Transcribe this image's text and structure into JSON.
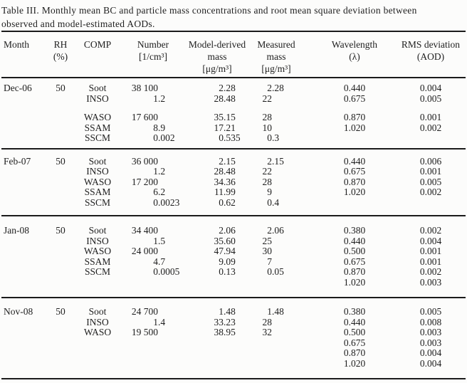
{
  "caption": {
    "lines": [
      "Table III. Monthly mean BC and particle mass concentrations and root mean square deviation between",
      "observed and model-estimated AODs."
    ]
  },
  "table": {
    "header": {
      "month": {
        "l1": "Month"
      },
      "rh": {
        "l1": "RH",
        "l2": "(%)"
      },
      "comp": {
        "l1": "COMP"
      },
      "number": {
        "l1": "Number",
        "l2": "[1/cm³]"
      },
      "model": {
        "l1": "Model-derived",
        "l2": "mass",
        "l3": "[μg/m³]"
      },
      "measured": {
        "l1": "Measured",
        "l2": "mass",
        "l3": "[μg/m³]"
      },
      "wavelength": {
        "l1": "Wavelength",
        "l2": "(λ)"
      },
      "rms": {
        "l1": "RMS deviation",
        "l2": "(AOD)"
      }
    },
    "blocks": [
      {
        "month": "Dec-06",
        "rh": "50",
        "rows": [
          {
            "comp": "Soot",
            "number": "38 100",
            "model": "2.28",
            "measured": "2.28",
            "wavelength": "0.440",
            "rms": "0.004"
          },
          {
            "comp": "INSO",
            "number": "1.2",
            "model": "28.48",
            "measured": "22",
            "wavelength": "0.675",
            "rms": "0.005"
          },
          {
            "comp": "WASO",
            "number": "17 600",
            "model": "35.15",
            "measured": "28",
            "wavelength": "0.870",
            "rms": "0.001",
            "gap_before": true
          },
          {
            "comp": "SSAM",
            "number": "8.9",
            "model": "17.21",
            "measured": "10",
            "wavelength": "1.020",
            "rms": "0.002"
          },
          {
            "comp": "SSCM",
            "number": "0.002",
            "model": "0.535",
            "measured": "0.3",
            "wavelength": "",
            "rms": ""
          }
        ]
      },
      {
        "month": "Feb-07",
        "rh": "50",
        "rows": [
          {
            "comp": "Soot",
            "number": "36 000",
            "model": "2.15",
            "measured": "2.15",
            "wavelength": "0.440",
            "rms": "0.006"
          },
          {
            "comp": "INSO",
            "number": "1.2",
            "model": "28.48",
            "measured": "22",
            "wavelength": "0.675",
            "rms": "0.001"
          },
          {
            "comp": "WASO",
            "number": "17 200",
            "model": "34.36",
            "measured": "28",
            "wavelength": "0.870",
            "rms": "0.005"
          },
          {
            "comp": "SSAM",
            "number": "6.2",
            "model": "11.99",
            "measured": "9",
            "wavelength": "1.020",
            "rms": "0.002"
          },
          {
            "comp": "SSCM",
            "number": "0.0023",
            "model": "0.62",
            "measured": "0.4",
            "wavelength": "",
            "rms": ""
          }
        ]
      },
      {
        "month": "Jan-08",
        "rh": "50",
        "rows": [
          {
            "comp": "Soot",
            "number": "34 400",
            "model": "2.06",
            "measured": "2.06",
            "wavelength": "0.380",
            "rms": "0.002"
          },
          {
            "comp": "INSO",
            "number": "1.5",
            "model": "35.60",
            "measured": "25",
            "wavelength": "0.440",
            "rms": "0.004"
          },
          {
            "comp": "WASO",
            "number": "24 000",
            "model": "47.94",
            "measured": "30",
            "wavelength": "0.500",
            "rms": "0.001"
          },
          {
            "comp": "SSAM",
            "number": "4.7",
            "model": "9.09",
            "measured": "7",
            "wavelength": "0.675",
            "rms": "0.001"
          },
          {
            "comp": "SSCM",
            "number": "0.0005",
            "model": "0.13",
            "measured": "0.05",
            "wavelength": "0.870",
            "rms": "0.002"
          },
          {
            "comp": "",
            "number": "",
            "model": "",
            "measured": "",
            "wavelength": "1.020",
            "rms": "0.003"
          }
        ]
      },
      {
        "month": "Nov-08",
        "rh": "50",
        "rows": [
          {
            "comp": "Soot",
            "number": "24 700",
            "model": "1.48",
            "measured": "1.48",
            "wavelength": "0.380",
            "rms": "0.005"
          },
          {
            "comp": "INSO",
            "number": "1.4",
            "model": "33.23",
            "measured": "28",
            "wavelength": "0.440",
            "rms": "0.008"
          },
          {
            "comp": "WASO",
            "number": "19 500",
            "model": "38.95",
            "measured": "32",
            "wavelength": "0.500",
            "rms": "0.003"
          },
          {
            "comp": "",
            "number": "",
            "model": "",
            "measured": "",
            "wavelength": "0.675",
            "rms": "0.003"
          },
          {
            "comp": "",
            "number": "",
            "model": "",
            "measured": "",
            "wavelength": "0.870",
            "rms": "0.004"
          },
          {
            "comp": "",
            "number": "",
            "model": "",
            "measured": "",
            "wavelength": "1.020",
            "rms": "0.004"
          }
        ]
      }
    ]
  }
}
